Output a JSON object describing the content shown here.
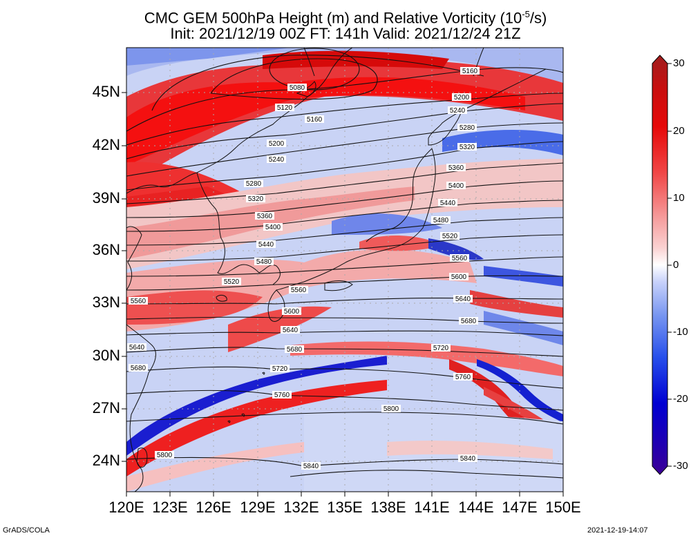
{
  "title": {
    "line1_prefix": "CMC GEM 500hPa Height (m) and Relative Vorticity (10",
    "line1_exp": "-5",
    "line1_suffix": "/s)",
    "line2": "Init: 2021/12/19 00Z  FT: 141h  Valid: 2021/12/24 21Z"
  },
  "axes": {
    "lat_labels": [
      "45N",
      "42N",
      "39N",
      "36N",
      "33N",
      "30N",
      "27N",
      "24N"
    ],
    "lon_labels": [
      "120E",
      "123E",
      "126E",
      "129E",
      "132E",
      "135E",
      "138E",
      "141E",
      "144E",
      "147E",
      "150E"
    ],
    "lon_range": [
      120,
      150
    ],
    "lat_range": [
      22.5,
      47.5
    ]
  },
  "colorbar": {
    "ticks": [
      "30",
      "20",
      "10",
      "0",
      "-10",
      "-20",
      "-30"
    ],
    "colors": [
      "#1e0082",
      "#0000c8",
      "#1e3ce6",
      "#5a82f0",
      "#9bb4f5",
      "#d2dcfa",
      "#ffffff",
      "#fad2d2",
      "#f59b9b",
      "#f05a5a",
      "#e61e1e",
      "#c80000",
      "#a00000"
    ]
  },
  "contours": [
    {
      "label": "5080"
    },
    {
      "label": "5120"
    },
    {
      "label": "5160"
    },
    {
      "label": "5160"
    },
    {
      "label": "5200"
    },
    {
      "label": "5200"
    },
    {
      "label": "5240"
    },
    {
      "label": "5240"
    },
    {
      "label": "5280"
    },
    {
      "label": "5280"
    },
    {
      "label": "5320"
    },
    {
      "label": "5320"
    },
    {
      "label": "5360"
    },
    {
      "label": "5360"
    },
    {
      "label": "5400"
    },
    {
      "label": "5400"
    },
    {
      "label": "5440"
    },
    {
      "label": "5440"
    },
    {
      "label": "5480"
    },
    {
      "label": "5480"
    },
    {
      "label": "5520"
    },
    {
      "label": "5520"
    },
    {
      "label": "5560"
    },
    {
      "label": "5560"
    },
    {
      "label": "5560"
    },
    {
      "label": "5600"
    },
    {
      "label": "5600"
    },
    {
      "label": "5640"
    },
    {
      "label": "5640"
    },
    {
      "label": "5640"
    },
    {
      "label": "5680"
    },
    {
      "label": "5680"
    },
    {
      "label": "5680"
    },
    {
      "label": "5720"
    },
    {
      "label": "5720"
    },
    {
      "label": "5760"
    },
    {
      "label": "5760"
    },
    {
      "label": "5800"
    },
    {
      "label": "5800"
    },
    {
      "label": "5840"
    },
    {
      "label": "5840"
    }
  ],
  "footer": {
    "left": "GrADS/COLA",
    "right": "2021-12-19-14:07"
  }
}
